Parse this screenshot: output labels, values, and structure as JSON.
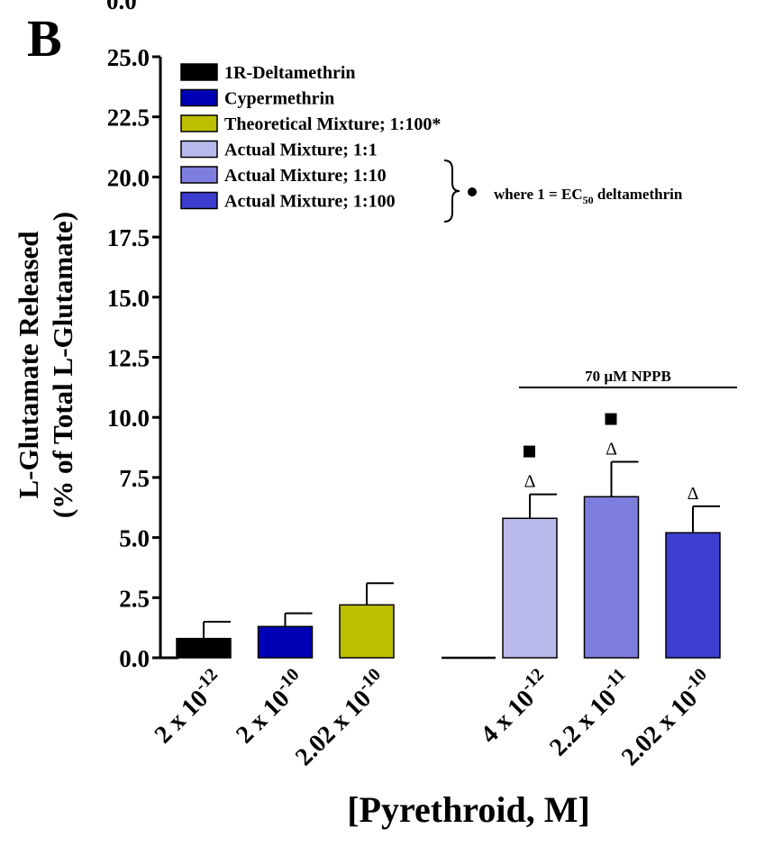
{
  "panel_label": "B",
  "top_fragment": "0.0",
  "chart_data": {
    "type": "bar",
    "title": "",
    "ylabel_line1": "L-Glutamate Released",
    "ylabel_line2": "(% of Total L-Glutamate)",
    "xlabel": "[Pyrethroid, M]",
    "ylim": [
      0,
      25
    ],
    "y_ticks": [
      "0.0",
      "2.5",
      "5.0",
      "7.5",
      "10.0",
      "12.5",
      "15.0",
      "17.5",
      "20.0",
      "22.5",
      "25.0"
    ],
    "categories": [
      {
        "base": "2 x 10",
        "exp": "-12"
      },
      {
        "base": "2 x 10",
        "exp": "-10"
      },
      {
        "base": "2.02 x 10",
        "exp": "-10"
      },
      {
        "base": "4 x 10",
        "exp": "-12"
      },
      {
        "base": "2.2 x 10",
        "exp": "-11"
      },
      {
        "base": "2.02 x 10",
        "exp": "-10"
      }
    ],
    "bars": [
      {
        "slot": 0,
        "value": 0.8,
        "error": 0.7,
        "color": "#000000",
        "series": 0
      },
      {
        "slot": 1,
        "value": 1.3,
        "error": 0.55,
        "color": "#0000b4",
        "series": 1
      },
      {
        "slot": 2,
        "value": 2.2,
        "error": 0.9,
        "color": "#bebe00",
        "series": 2
      },
      {
        "slot": 4,
        "value": 5.8,
        "error": 1.0,
        "color": "#b9b9ec",
        "series": 3
      },
      {
        "slot": 5,
        "value": 6.7,
        "error": 1.45,
        "color": "#7e7edf",
        "series": 4
      },
      {
        "slot": 6,
        "value": 5.2,
        "error": 1.1,
        "color": "#3d3dcf",
        "series": 5
      }
    ],
    "legend": [
      {
        "label": "1R-Deltamethrin",
        "color": "#000000"
      },
      {
        "label": "Cypermethrin",
        "color": "#0000b4"
      },
      {
        "label": "Theoretical Mixture; 1:100*",
        "color": "#bebe00"
      },
      {
        "label": "Actual Mixture; 1:1",
        "color": "#b9b9ec"
      },
      {
        "label": "Actual Mixture; 1:10",
        "color": "#7e7edf"
      },
      {
        "label": "Actual Mixture; 1:100",
        "color": "#3d3dcf"
      }
    ],
    "brace_note": {
      "prefix": "where 1 = EC",
      "sub": "50",
      "suffix": " deltamethrin"
    },
    "bracket_label": "70 µM NPPB",
    "markers": [
      {
        "slot": 4,
        "delta": "Δ",
        "square": true
      },
      {
        "slot": 5,
        "delta": "Δ",
        "square": true
      },
      {
        "slot": 6,
        "delta": "Δ",
        "square": false
      }
    ]
  }
}
